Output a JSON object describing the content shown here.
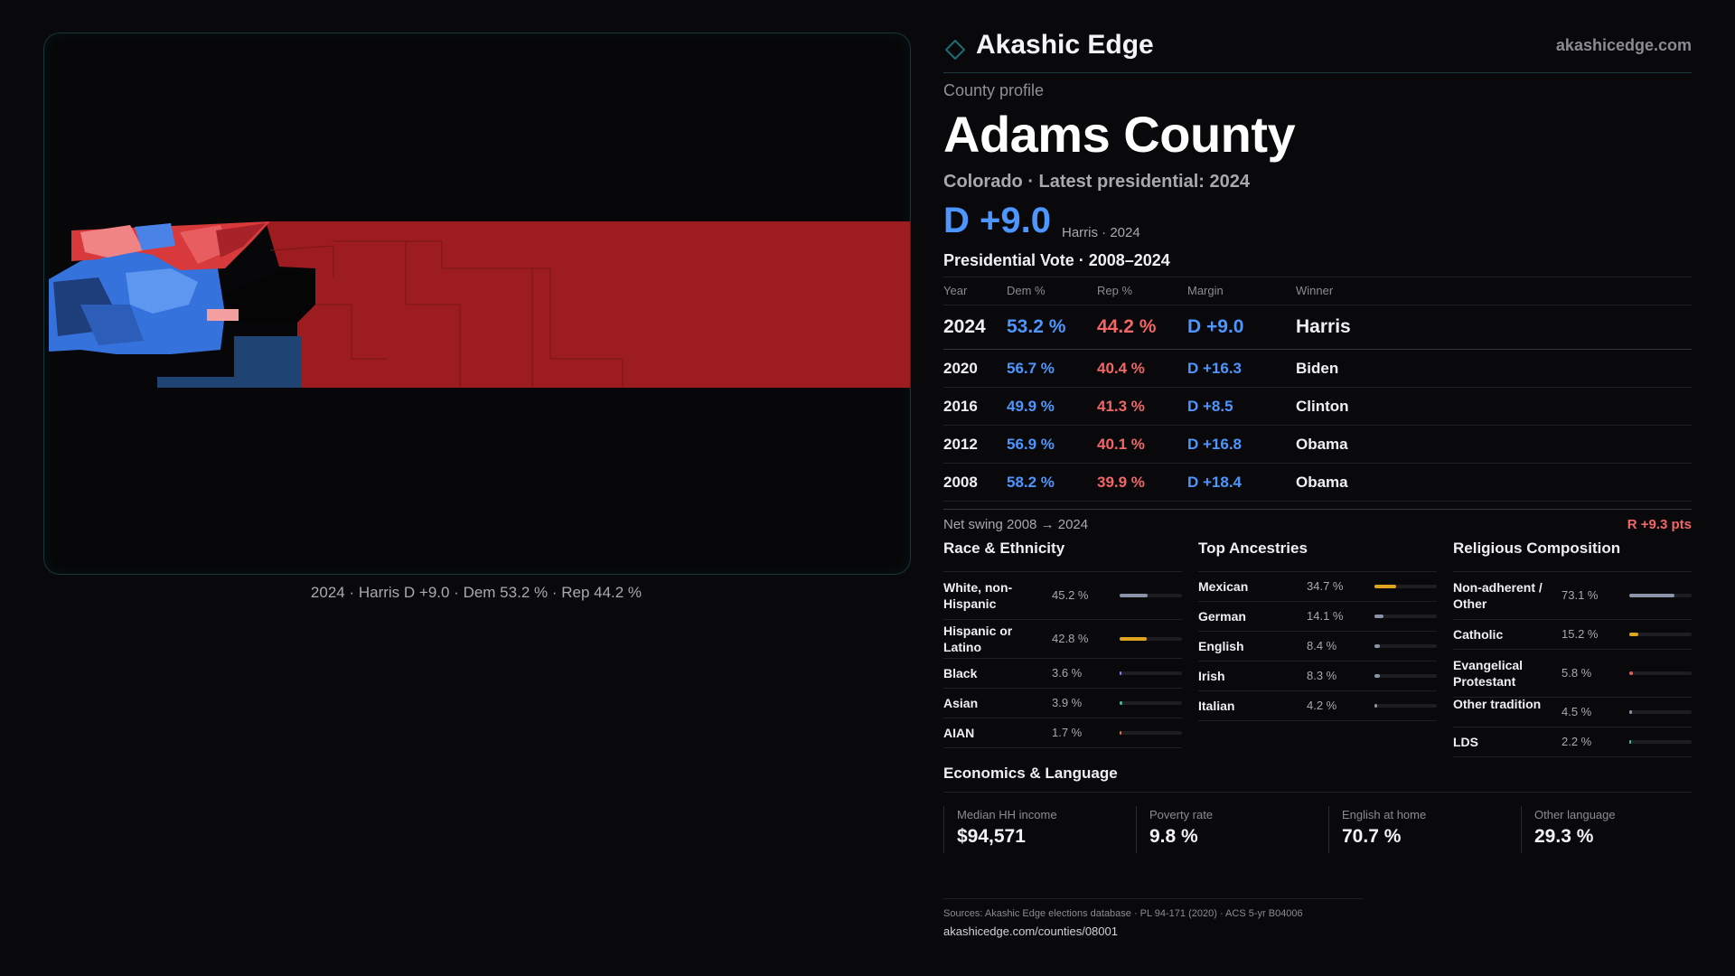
{
  "brand": {
    "name": "Akashic Edge",
    "url": "akashicedge.com"
  },
  "profile": {
    "eyebrow": "County profile",
    "title": "Adams County",
    "subtitle": "Colorado · Latest presidential: 2024",
    "headline_margin": "D +9.0",
    "headline_note": "Harris · 2024"
  },
  "vote": {
    "title": "Presidential Vote · 2008–2024",
    "headers": {
      "year": "Year",
      "dem": "Dem %",
      "rep": "Rep %",
      "margin": "Margin",
      "winner": "Winner"
    },
    "rows": [
      {
        "year": "2024",
        "dem": "53.2 %",
        "rep": "44.2 %",
        "margin": "D +9.0",
        "winner": "Harris"
      },
      {
        "year": "2020",
        "dem": "56.7 %",
        "rep": "40.4 %",
        "margin": "D +16.3",
        "winner": "Biden"
      },
      {
        "year": "2016",
        "dem": "49.9 %",
        "rep": "41.3 %",
        "margin": "D +8.5",
        "winner": "Clinton"
      },
      {
        "year": "2012",
        "dem": "56.9 %",
        "rep": "40.1 %",
        "margin": "D +16.8",
        "winner": "Obama"
      },
      {
        "year": "2008",
        "dem": "58.2 %",
        "rep": "39.9 %",
        "margin": "D +18.4",
        "winner": "Obama"
      }
    ]
  },
  "swing": {
    "label": "Net swing 2008 → 2024",
    "value": "R +9.3 pts"
  },
  "race": {
    "title": "Race & Ethnicity",
    "items": [
      {
        "label": "White, non-Hispanic",
        "value": "45.2 %",
        "fraction": 0.452,
        "color": "#8a93a8"
      },
      {
        "label": "Hispanic or Latino",
        "value": "42.8 %",
        "fraction": 0.428,
        "color": "#e0a51e"
      },
      {
        "label": "Black",
        "value": "3.6 %",
        "fraction": 0.036,
        "color": "#8b7cff"
      },
      {
        "label": "Asian",
        "value": "3.9 %",
        "fraction": 0.039,
        "color": "#2fc39a"
      },
      {
        "label": "AIAN",
        "value": "1.7 %",
        "fraction": 0.017,
        "color": "#e46a3a"
      }
    ]
  },
  "ancestry": {
    "title": "Top Ancestries",
    "items": [
      {
        "label": "Mexican",
        "value": "34.7 %",
        "fraction": 0.347,
        "color": "#e0a51e"
      },
      {
        "label": "German",
        "value": "14.1 %",
        "fraction": 0.141,
        "color": "#8a93a8"
      },
      {
        "label": "English",
        "value": "8.4 %",
        "fraction": 0.084,
        "color": "#8a93a8"
      },
      {
        "label": "Irish",
        "value": "8.3 %",
        "fraction": 0.083,
        "color": "#8a93a8"
      },
      {
        "label": "Italian",
        "value": "4.2 %",
        "fraction": 0.042,
        "color": "#8a93a8"
      }
    ]
  },
  "religion": {
    "title": "Religious Composition",
    "items": [
      {
        "label": "Non-adherent / Other",
        "value": "73.1 %",
        "fraction": 0.731,
        "color": "#8a93a8"
      },
      {
        "label": "Catholic",
        "value": "15.2 %",
        "fraction": 0.152,
        "color": "#e0a51e"
      },
      {
        "label": "Evangelical Protestant",
        "value": "5.8 %",
        "fraction": 0.058,
        "color": "#e25a5a"
      },
      {
        "label": "Other tradition",
        "value": "4.5 %",
        "fraction": 0.045,
        "color": "#8a93a8"
      },
      {
        "label": "LDS",
        "value": "2.2 %",
        "fraction": 0.022,
        "color": "#2fc39a"
      }
    ]
  },
  "economics": {
    "title": "Economics & Language",
    "items": [
      {
        "label": "Median HH income",
        "value": "$94,571"
      },
      {
        "label": "Poverty rate",
        "value": "9.8 %"
      },
      {
        "label": "English at home",
        "value": "70.7 %"
      },
      {
        "label": "Other language",
        "value": "29.3 %"
      }
    ]
  },
  "map": {
    "caption": "2024 · Harris D +9.0 · Dem 53.2 % · Rep 44.2 %"
  },
  "footer": {
    "sources": "Sources: Akashic Edge elections database · PL 94-171 (2020) · ACS 5-yr B04006",
    "link": "akashicedge.com/counties/08001"
  },
  "colors": {
    "dem": "#4d95ff",
    "rep": "#f26666",
    "accent": "#1b6d72"
  }
}
